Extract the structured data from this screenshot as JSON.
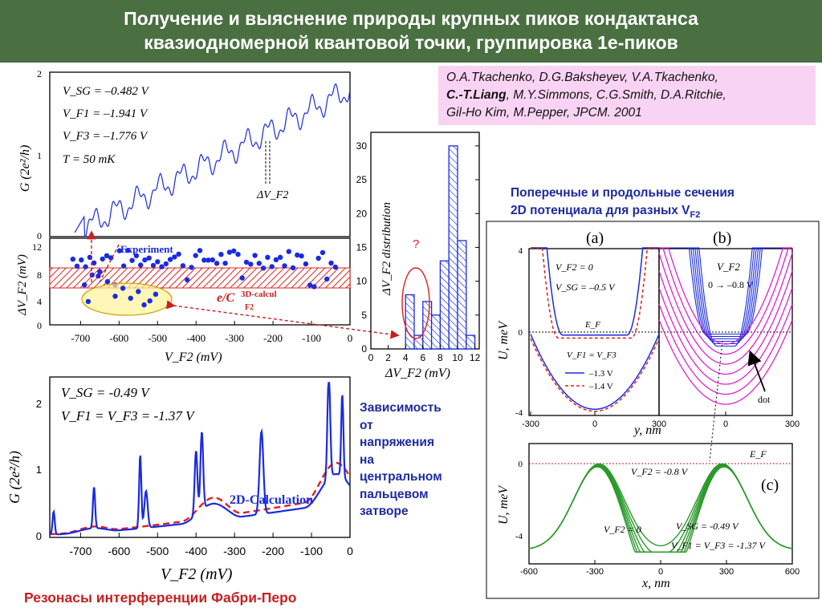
{
  "title": {
    "line1": "Получение и выяснение природы крупных пиков кондактанса",
    "line2": "квазиодномерной квантовой точки, группировка 1е-пиков"
  },
  "authors": {
    "line1": "O.A.Tkachenko, D.G.Baksheyev, V.A.Tkachenko,",
    "line2_bold": "C.-T.Liang",
    "line2_rest": ", M.Y.Simmons, C.G.Smith, D.A.Ritchie,",
    "line3": "Gil-Ho Kim, M.Pepper, JPCM. 2001"
  },
  "captions": {
    "sections_line1": "Поперечные и продольные сечения",
    "sections_line2": "2D потенциала для разных V",
    "sections_sub": "F2",
    "dependence": [
      "Зависимость",
      "от",
      "напряжения",
      "на",
      "центральном",
      "пальцевом",
      "затворе"
    ],
    "fabry_perot": "Резонасы интерференции Фабри-Перо"
  },
  "panel_top": {
    "params": [
      "V_SG = –0.482 V",
      "V_F1 = –1.941 V",
      "V_F3 = –1.776 V",
      "T = 50 mK"
    ],
    "ylabel": "G (2e²/h)",
    "yticks": [
      "2",
      "1",
      "0"
    ],
    "annot": "ΔV_F2"
  },
  "panel_mid": {
    "ylabel": "ΔV_F2 (mV)",
    "yticks": [
      "12",
      "8",
      "4",
      "0"
    ],
    "xticks": [
      "-700",
      "-600",
      "-500",
      "-400",
      "-300",
      "-200",
      "-100",
      "0"
    ],
    "xlabel": "V_F2 (mV)",
    "legend_experiment": "Experiment",
    "legend_calc": "3D-calcul",
    "legend_calc_sub": "F2",
    "ec_label": "e/C"
  },
  "histogram": {
    "ylabel": "ΔV_F2 distribution",
    "yticks": [
      "30",
      "25",
      "20",
      "15",
      "10",
      "5",
      "0"
    ],
    "xticks": [
      "0",
      "2",
      "4",
      "6",
      "8",
      "10",
      "12"
    ],
    "xlabel": "ΔV_F2 (mV)",
    "question": "?",
    "bins": [
      {
        "x": 4.5,
        "count": 8
      },
      {
        "x": 5.5,
        "count": 2
      },
      {
        "x": 6.5,
        "count": 7
      },
      {
        "x": 7.5,
        "count": 5
      },
      {
        "x": 8.5,
        "count": 13
      },
      {
        "x": 9.5,
        "count": 30
      },
      {
        "x": 10.5,
        "count": 16
      },
      {
        "x": 11.5,
        "count": 2
      }
    ]
  },
  "panel_calc": {
    "params": [
      "V_SG = -0.49 V",
      "V_F1 = V_F3 = -1.37 V"
    ],
    "ylabel": "G (2e²/h)",
    "yticks": [
      "2",
      "1",
      "0"
    ],
    "xticks": [
      "-700",
      "-600",
      "-500",
      "-400",
      "-300",
      "-200",
      "-100",
      "0"
    ],
    "xlabel": "V_F2 (mV)",
    "legend": "2D-Calculation"
  },
  "panel_a": {
    "label": "(a)",
    "vf2": "V_F2 = 0",
    "vsg": "V_SG = –0.5 V",
    "ef": "E_F",
    "legend_title": "V_F1 = V_F3",
    "legend_items": [
      "–1.3 V",
      "–1.4 V"
    ],
    "yticks": [
      "4",
      "0",
      "-4"
    ],
    "ylabel": "U, meV"
  },
  "panel_b": {
    "label": "(b)",
    "vf2": "V_F2",
    "range": "0 → –0.8 V",
    "dot": "dot"
  },
  "panel_ab_axis": {
    "xticks": [
      "-300",
      "0",
      "300",
      "0",
      "300"
    ],
    "xlabel": "y, nm"
  },
  "panel_c": {
    "label": "(c)",
    "ef": "E_F",
    "vf2_top": "V_F2 = -0.8 V",
    "vf2_bot": "V_F2 = 0",
    "vsg": "V_SG = -0.49 V",
    "vf1": "V_F1 = V_F3 = -1.37 V",
    "yticks": [
      "0",
      "-4"
    ],
    "xticks": [
      "-600",
      "-300",
      "0",
      "300",
      "600"
    ],
    "xlabel": "x, nm",
    "ylabel": "U, meV"
  },
  "colors": {
    "title_bg": "#4a7042",
    "blue": "#1a2be0",
    "red": "#e02020",
    "magenta": "#e020d0",
    "green": "#2a9a2a"
  }
}
